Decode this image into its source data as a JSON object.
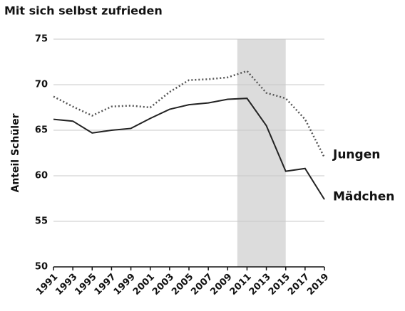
{
  "chart_data": {
    "type": "line",
    "title": "Mit sich selbst zufrieden",
    "ylabel": "Anteil Schüler",
    "x": [
      1991,
      1993,
      1995,
      1997,
      1999,
      2001,
      2003,
      2005,
      2007,
      2009,
      2011,
      2013,
      2015,
      2017,
      2019
    ],
    "xlim": [
      1991,
      2019
    ],
    "xticks": [
      1991,
      1993,
      1995,
      1997,
      1999,
      2001,
      2003,
      2005,
      2007,
      2009,
      2011,
      2013,
      2015,
      2017,
      2019
    ],
    "ylim": [
      50,
      75
    ],
    "yticks": [
      50,
      55,
      60,
      65,
      70,
      75
    ],
    "grid": true,
    "shaded_range": [
      2010,
      2015
    ],
    "series": [
      {
        "name": "Jungen",
        "color": "#555555",
        "dotted": true,
        "values": [
          68.7,
          67.6,
          66.6,
          67.6,
          67.7,
          67.5,
          69.2,
          70.5,
          70.6,
          70.8,
          71.5,
          69.1,
          68.5,
          66.2,
          62.0
        ]
      },
      {
        "name": "Mädchen",
        "color": "#222222",
        "dotted": false,
        "values": [
          66.2,
          66.0,
          64.7,
          65.0,
          65.2,
          66.3,
          67.3,
          67.8,
          68.0,
          68.4,
          68.5,
          65.5,
          60.5,
          60.8,
          57.4
        ]
      }
    ]
  }
}
